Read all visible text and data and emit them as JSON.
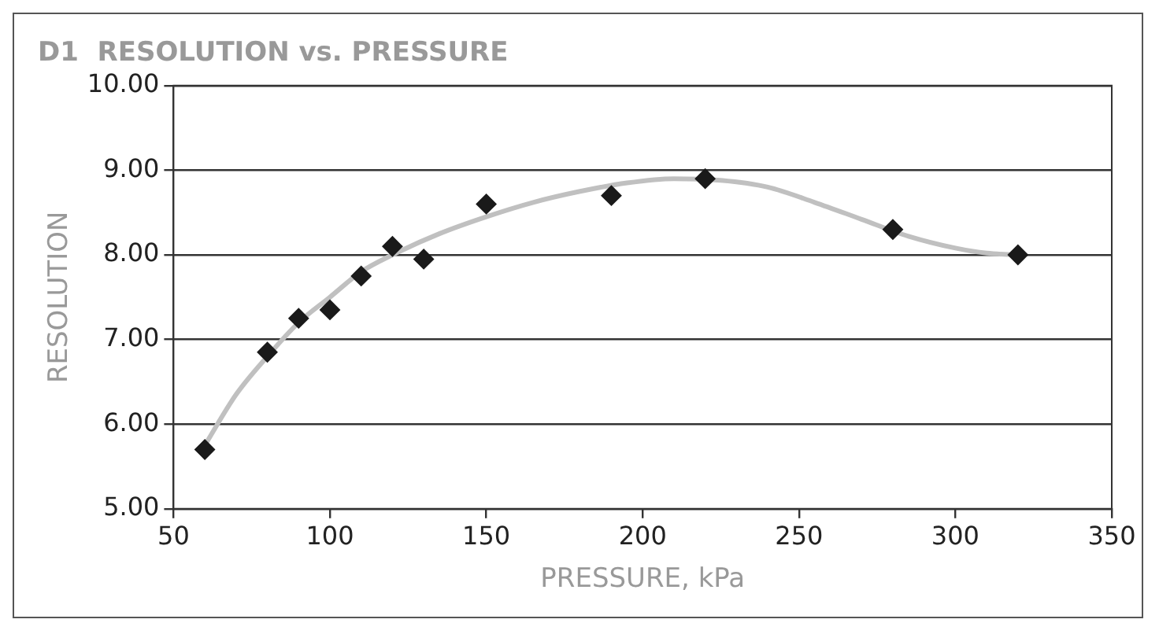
{
  "chart_data": {
    "type": "scatter",
    "title": "D1  RESOLUTION vs. PRESSURE",
    "xlabel": "PRESSURE, kPa",
    "ylabel": "RESOLUTION",
    "xlim": [
      50,
      350
    ],
    "xticks": [
      50,
      100,
      150,
      200,
      250,
      300,
      350
    ],
    "ylim": [
      5,
      10
    ],
    "yticks": [
      {
        "value": 5,
        "label": "5.00"
      },
      {
        "value": 6,
        "label": "6.00"
      },
      {
        "value": 7,
        "label": "7.00"
      },
      {
        "value": 8,
        "label": "8.00"
      },
      {
        "value": 9,
        "label": "9.00"
      },
      {
        "value": 10,
        "label": "10.00"
      }
    ],
    "grid": "y",
    "legend": false,
    "marker": "diamond",
    "series": [
      {
        "color": "#1a1a1a",
        "x": [
          60,
          80,
          90,
          100,
          110,
          120,
          130,
          150,
          190,
          220,
          280,
          320
        ],
        "values": [
          5.7,
          6.85,
          7.25,
          7.35,
          7.75,
          8.1,
          7.95,
          8.6,
          8.7,
          8.9,
          8.3,
          8.0
        ]
      },
      {
        "type": "line",
        "color": "#c0c0c0",
        "marker": "none",
        "x": [
          60,
          70,
          80,
          90,
          100,
          110,
          120,
          135,
          150,
          165,
          180,
          195,
          210,
          225,
          240,
          255,
          270,
          285,
          300,
          310,
          320
        ],
        "values": [
          5.75,
          6.35,
          6.8,
          7.2,
          7.5,
          7.8,
          8.0,
          8.25,
          8.45,
          8.62,
          8.75,
          8.85,
          8.9,
          8.88,
          8.8,
          8.62,
          8.42,
          8.22,
          8.08,
          8.02,
          8.0
        ]
      }
    ]
  }
}
